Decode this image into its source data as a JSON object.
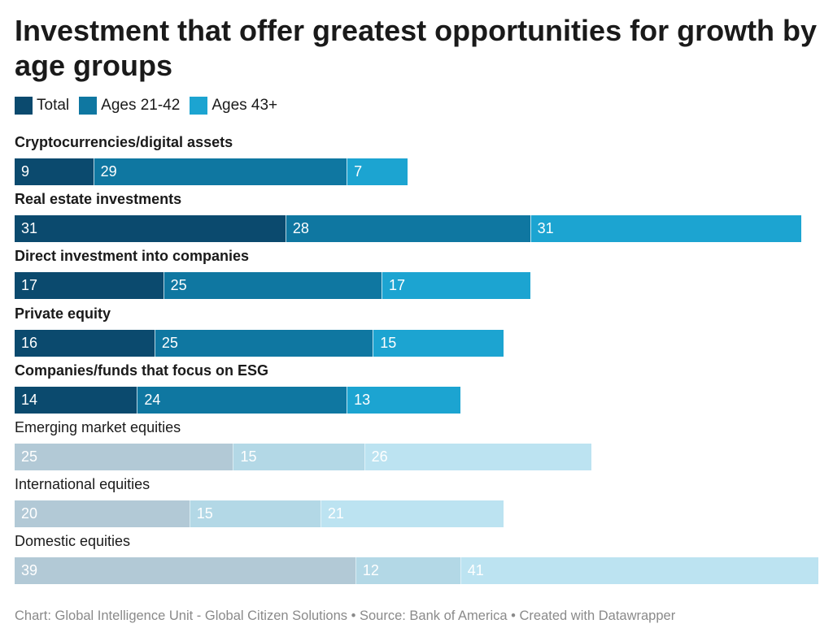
{
  "chart_data": {
    "type": "bar",
    "stacked": true,
    "orientation": "horizontal",
    "title": "Investment that offer greatest opportunities for growth by age groups",
    "legend": [
      {
        "name": "Total",
        "color": "#0b4a6e"
      },
      {
        "name": "Ages 21-42",
        "color": "#0f77a1"
      },
      {
        "name": "Ages 43+",
        "color": "#1ca4d1"
      }
    ],
    "muted_colors": [
      "#b2c9d6",
      "#b3d8e6",
      "#bce3f1"
    ],
    "categories": [
      "Cryptocurrencies/digital assets",
      "Real estate investments",
      "Direct investment into companies",
      "Private equity",
      "Companies/funds that focus on ESG",
      "Emerging market equities",
      "International equities",
      "Domestic equities"
    ],
    "highlighted": [
      true,
      true,
      true,
      true,
      true,
      false,
      false,
      false
    ],
    "series": [
      {
        "name": "Total",
        "values": [
          9,
          31,
          17,
          16,
          14,
          25,
          20,
          39
        ]
      },
      {
        "name": "Ages 21-42",
        "values": [
          29,
          28,
          25,
          25,
          24,
          15,
          15,
          12
        ]
      },
      {
        "name": "Ages 43+",
        "values": [
          7,
          31,
          17,
          15,
          13,
          26,
          21,
          41
        ]
      }
    ],
    "xlim": [
      0,
      92
    ],
    "footer": "Chart: Global Intelligence Unit - Global Citizen Solutions • Source: Bank of America  • Created with Datawrapper"
  }
}
